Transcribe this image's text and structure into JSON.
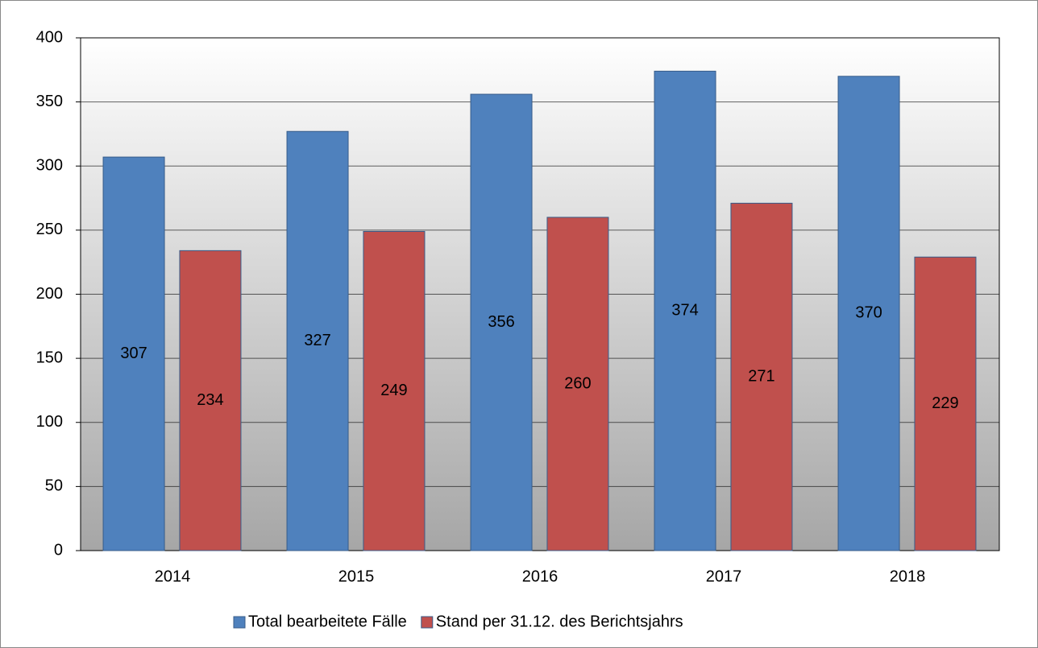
{
  "chart_data": {
    "type": "bar",
    "categories": [
      "2014",
      "2015",
      "2016",
      "2017",
      "2018"
    ],
    "series": [
      {
        "name": "Total bearbeitete Fälle",
        "color": "#4f81bd",
        "values": [
          307,
          327,
          356,
          374,
          370
        ]
      },
      {
        "name": "Stand per 31.12. des Berichtsjahrs",
        "color": "#c0504d",
        "values": [
          234,
          249,
          260,
          271,
          229
        ]
      }
    ],
    "ylim": [
      0,
      400
    ],
    "yticks": [
      0,
      50,
      100,
      150,
      200,
      250,
      300,
      350,
      400
    ],
    "grid": true,
    "legend": "bottom"
  }
}
